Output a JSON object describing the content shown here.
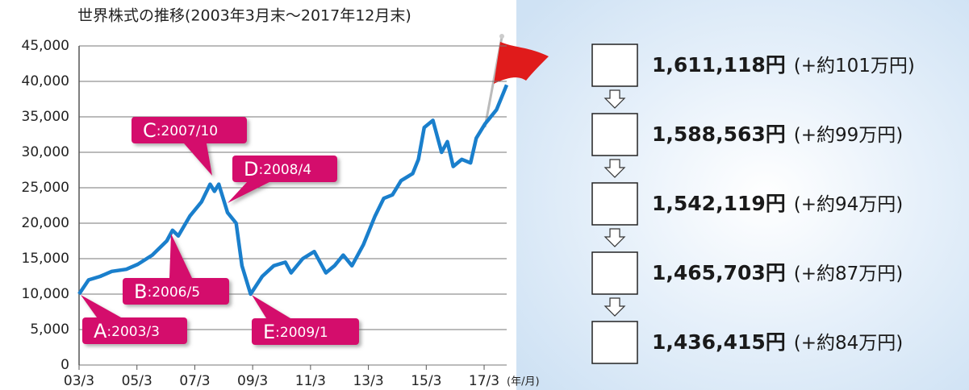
{
  "chart_data": {
    "type": "line",
    "title": "世界株式の推移(2003年3月末〜2017年12月末)",
    "x_unit": "(年/月)",
    "x": [
      2003.17,
      2003.5,
      2003.9,
      2004.3,
      2004.8,
      2005.2,
      2005.7,
      2006.2,
      2006.4,
      2006.6,
      2007.0,
      2007.4,
      2007.7,
      2007.85,
      2008.0,
      2008.3,
      2008.6,
      2008.8,
      2009.1,
      2009.5,
      2009.9,
      2010.3,
      2010.5,
      2010.9,
      2011.3,
      2011.7,
      2012.0,
      2012.3,
      2012.6,
      2013.0,
      2013.4,
      2013.7,
      2014.0,
      2014.3,
      2014.7,
      2014.9,
      2015.1,
      2015.4,
      2015.7,
      2015.9,
      2016.1,
      2016.4,
      2016.7,
      2016.9,
      2017.2,
      2017.6,
      2017.95
    ],
    "series": [
      {
        "color": "#1a7fcc",
        "values": [
          10000,
          12000,
          12500,
          13200,
          13500,
          14200,
          15500,
          17500,
          19000,
          18200,
          21000,
          23000,
          25500,
          24500,
          25500,
          21500,
          20000,
          14000,
          10000,
          12500,
          14000,
          14500,
          13000,
          15000,
          16000,
          13000,
          14000,
          15500,
          14000,
          17000,
          21000,
          23500,
          24000,
          26000,
          27000,
          29000,
          33500,
          34500,
          30000,
          31500,
          28000,
          29000,
          28500,
          32000,
          34000,
          36000,
          39500
        ]
      }
    ],
    "xlim": [
      2003.17,
      2017.95
    ],
    "xticks": [
      {
        "value": 2003.17,
        "label": "03/3"
      },
      {
        "value": 2005.17,
        "label": "05/3"
      },
      {
        "value": 2007.17,
        "label": "07/3"
      },
      {
        "value": 2009.17,
        "label": "09/3"
      },
      {
        "value": 2011.17,
        "label": "11/3"
      },
      {
        "value": 2013.17,
        "label": "13/3"
      },
      {
        "value": 2015.17,
        "label": "15/3"
      },
      {
        "value": 2017.17,
        "label": "17/3"
      }
    ],
    "ylim": [
      0,
      45000
    ],
    "yticks": [
      0,
      {
        "value": 5000,
        "label": "5,000"
      },
      {
        "value": 10000,
        "label": "10,000"
      },
      {
        "value": 15000,
        "label": "15,000"
      },
      {
        "value": 20000,
        "label": "20,000"
      },
      {
        "value": 25000,
        "label": "25,000"
      },
      {
        "value": 30000,
        "label": "30,000"
      },
      {
        "value": 35000,
        "label": "35,000"
      },
      {
        "value": 40000,
        "label": "40,000"
      },
      {
        "value": 45000,
        "label": "45,000"
      }
    ],
    "grid": true,
    "annotations": [
      {
        "letter": "A",
        "text": ":2003/3"
      },
      {
        "letter": "B",
        "text": ":2006/5"
      },
      {
        "letter": "C",
        "text": ":2007/10"
      },
      {
        "letter": "D",
        "text": ":2008/4"
      },
      {
        "letter": "E",
        "text": ":2009/1"
      }
    ]
  },
  "results": [
    {
      "amount": "1,611,118円",
      "note": "(+約101万円)"
    },
    {
      "amount": "1,588,563円",
      "note": "(+約99万円)"
    },
    {
      "amount": "1,542,119円",
      "note": "(+約94万円)"
    },
    {
      "amount": "1,465,703円",
      "note": "(+約87万円)"
    },
    {
      "amount": "1,436,415円",
      "note": "(+約84万円)"
    }
  ]
}
